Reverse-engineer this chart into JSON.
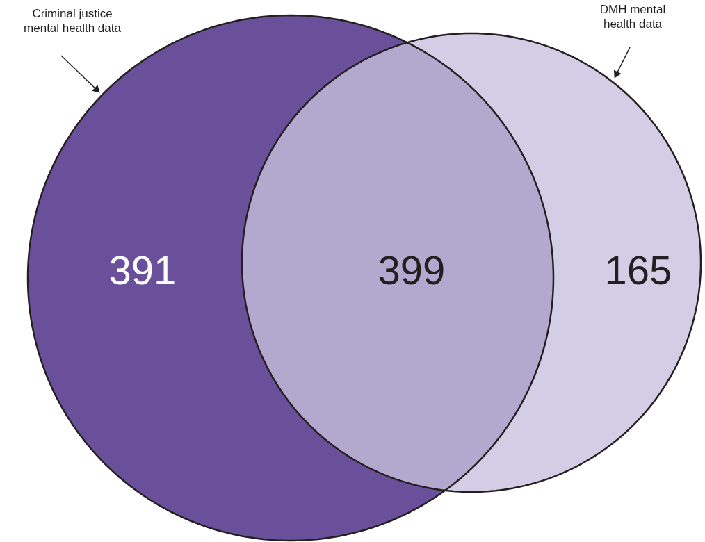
{
  "chart_data": {
    "type": "other",
    "categories": [
      null,
      null,
      null
    ],
    "values": [
      391,
      399,
      165
    ],
    "data_labels": true,
    "colors": [
      "#6a4f9a",
      "#b3a8cd",
      "#d3cde6"
    ],
    "annotations": [
      "Criminal justice\nmental health data",
      "DMH mental health data"
    ]
  }
}
